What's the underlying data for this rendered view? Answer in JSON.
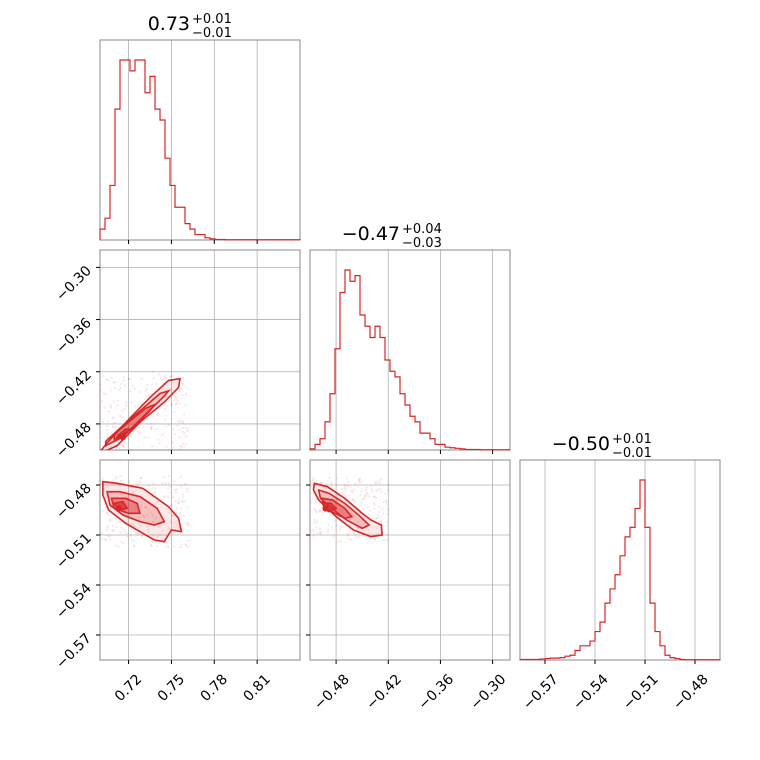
{
  "chart_data": {
    "type": "corner",
    "color": "#d62728",
    "params": [
      {
        "index": 0,
        "range": [
          0.7,
          0.84
        ],
        "ticks": [
          0.72,
          0.75,
          0.78,
          0.81
        ],
        "tick_labels": [
          "0.72",
          "0.75",
          "0.78",
          "0.81"
        ],
        "title_value": "0.73",
        "title_plus": "+0.01",
        "title_minus": "−0.01"
      },
      {
        "index": 1,
        "range": [
          -0.51,
          -0.28
        ],
        "ticks": [
          -0.48,
          -0.42,
          -0.36,
          -0.3
        ],
        "tick_labels": [
          "−0.48",
          "−0.42",
          "−0.36",
          "−0.30"
        ],
        "title_value": "−0.47",
        "title_plus": "+0.04",
        "title_minus": "−0.03"
      },
      {
        "index": 2,
        "range": [
          -0.585,
          -0.465
        ],
        "ticks": [
          -0.57,
          -0.54,
          -0.51,
          -0.48
        ],
        "tick_labels": [
          "−0.57",
          "−0.54",
          "−0.51",
          "−0.48"
        ],
        "title_value": "−0.50",
        "title_plus": "+0.01",
        "title_minus": "−0.01"
      }
    ],
    "histograms": [
      {
        "param": 0,
        "x0": 0.7,
        "x1": 0.84,
        "counts": [
          2,
          4,
          10,
          24,
          33,
          33,
          31,
          33,
          33,
          27,
          30,
          24,
          22,
          15,
          10,
          6,
          6,
          3,
          2,
          1,
          1,
          0.4,
          0.2,
          0.1,
          0.1,
          0.05,
          0.05,
          0.05,
          0.05,
          0.05,
          0.05,
          0.05,
          0.05,
          0.05,
          0.05,
          0.05,
          0.05,
          0.05,
          0.05,
          0.05
        ]
      },
      {
        "param": 1,
        "x0": -0.51,
        "x1": -0.28,
        "counts": [
          0.2,
          1,
          2,
          5,
          10,
          18,
          28,
          32,
          30,
          31,
          24,
          22,
          20,
          22,
          20,
          16,
          14,
          13,
          10,
          8,
          6,
          5,
          3,
          3,
          2,
          1,
          1,
          0.5,
          0.4,
          0.3,
          0.2,
          0.1,
          0.1,
          0.1,
          0.05,
          0.05,
          0.05,
          0.05,
          0.05,
          0.05
        ]
      },
      {
        "param": 2,
        "x0": -0.585,
        "x1": -0.465,
        "counts": [
          0.1,
          0.1,
          0.1,
          0.1,
          0.2,
          0.3,
          0.4,
          0.4,
          0.5,
          0.8,
          1,
          2,
          3,
          3,
          4,
          6,
          8,
          12,
          15,
          18,
          22,
          26,
          28,
          32,
          38,
          28,
          12,
          6,
          3,
          1,
          0.5,
          0.3,
          0.1,
          0.05,
          0.05,
          0.05,
          0.05,
          0.05,
          0.05,
          0.05
        ]
      }
    ],
    "pairs": [
      {
        "x_param": 0,
        "y_param": 1,
        "centroid": [
          0.716,
          -0.495
        ],
        "contours": [
          [
            [
              0.7,
              -0.514
            ],
            [
              0.712,
              -0.505
            ],
            [
              0.728,
              -0.478
            ],
            [
              0.745,
              -0.455
            ],
            [
              0.755,
              -0.438
            ],
            [
              0.756,
              -0.428
            ],
            [
              0.748,
              -0.43
            ],
            [
              0.736,
              -0.448
            ],
            [
              0.72,
              -0.475
            ],
            [
              0.706,
              -0.5
            ],
            [
              0.7,
              -0.512
            ]
          ],
          [
            [
              0.704,
              -0.505
            ],
            [
              0.716,
              -0.495
            ],
            [
              0.73,
              -0.472
            ],
            [
              0.745,
              -0.448
            ],
            [
              0.748,
              -0.442
            ],
            [
              0.742,
              -0.445
            ],
            [
              0.728,
              -0.465
            ],
            [
              0.714,
              -0.485
            ],
            [
              0.704,
              -0.5
            ]
          ],
          [
            [
              0.71,
              -0.498
            ],
            [
              0.722,
              -0.486
            ],
            [
              0.735,
              -0.465
            ],
            [
              0.738,
              -0.458
            ],
            [
              0.732,
              -0.462
            ],
            [
              0.72,
              -0.478
            ],
            [
              0.71,
              -0.492
            ]
          ],
          [
            [
              0.712,
              -0.498
            ],
            [
              0.718,
              -0.49
            ],
            [
              0.722,
              -0.486
            ],
            [
              0.718,
              -0.486
            ],
            [
              0.712,
              -0.494
            ]
          ]
        ]
      },
      {
        "x_param": 0,
        "y_param": 2,
        "centroid": [
          0.713,
          -0.494
        ],
        "contours": [
          [
            [
              0.702,
              -0.478
            ],
            [
              0.712,
              -0.479
            ],
            [
              0.73,
              -0.482
            ],
            [
              0.748,
              -0.493
            ],
            [
              0.755,
              -0.5
            ],
            [
              0.757,
              -0.508
            ],
            [
              0.75,
              -0.507
            ],
            [
              0.745,
              -0.514
            ],
            [
              0.738,
              -0.513
            ],
            [
              0.728,
              -0.508
            ],
            [
              0.718,
              -0.503
            ],
            [
              0.706,
              -0.495
            ],
            [
              0.702,
              -0.486
            ]
          ],
          [
            [
              0.705,
              -0.484
            ],
            [
              0.714,
              -0.484
            ],
            [
              0.728,
              -0.487
            ],
            [
              0.74,
              -0.494
            ],
            [
              0.745,
              -0.502
            ],
            [
              0.738,
              -0.504
            ],
            [
              0.728,
              -0.502
            ],
            [
              0.716,
              -0.498
            ],
            [
              0.707,
              -0.492
            ]
          ],
          [
            [
              0.708,
              -0.488
            ],
            [
              0.718,
              -0.488
            ],
            [
              0.726,
              -0.491
            ],
            [
              0.728,
              -0.497
            ],
            [
              0.72,
              -0.497
            ],
            [
              0.71,
              -0.494
            ]
          ],
          [
            [
              0.71,
              -0.491
            ],
            [
              0.716,
              -0.49
            ],
            [
              0.719,
              -0.494
            ],
            [
              0.713,
              -0.495
            ]
          ]
        ]
      },
      {
        "x_param": 1,
        "y_param": 2,
        "centroid": [
          -0.492,
          -0.494
        ],
        "contours": [
          [
            [
              -0.505,
              -0.479
            ],
            [
              -0.49,
              -0.481
            ],
            [
              -0.47,
              -0.488
            ],
            [
              -0.45,
              -0.497
            ],
            [
              -0.44,
              -0.501
            ],
            [
              -0.428,
              -0.504
            ],
            [
              -0.427,
              -0.51
            ],
            [
              -0.44,
              -0.511
            ],
            [
              -0.46,
              -0.507
            ],
            [
              -0.48,
              -0.499
            ],
            [
              -0.5,
              -0.489
            ],
            [
              -0.506,
              -0.483
            ]
          ],
          [
            [
              -0.5,
              -0.483
            ],
            [
              -0.488,
              -0.485
            ],
            [
              -0.47,
              -0.491
            ],
            [
              -0.452,
              -0.499
            ],
            [
              -0.442,
              -0.504
            ],
            [
              -0.45,
              -0.506
            ],
            [
              -0.468,
              -0.501
            ],
            [
              -0.485,
              -0.494
            ],
            [
              -0.498,
              -0.488
            ]
          ],
          [
            [
              -0.496,
              -0.488
            ],
            [
              -0.484,
              -0.489
            ],
            [
              -0.47,
              -0.494
            ],
            [
              -0.462,
              -0.499
            ],
            [
              -0.47,
              -0.5
            ],
            [
              -0.485,
              -0.496
            ],
            [
              -0.495,
              -0.492
            ]
          ],
          [
            [
              -0.494,
              -0.491
            ],
            [
              -0.486,
              -0.491
            ],
            [
              -0.48,
              -0.494
            ],
            [
              -0.488,
              -0.496
            ],
            [
              -0.494,
              -0.494
            ]
          ]
        ]
      }
    ]
  }
}
